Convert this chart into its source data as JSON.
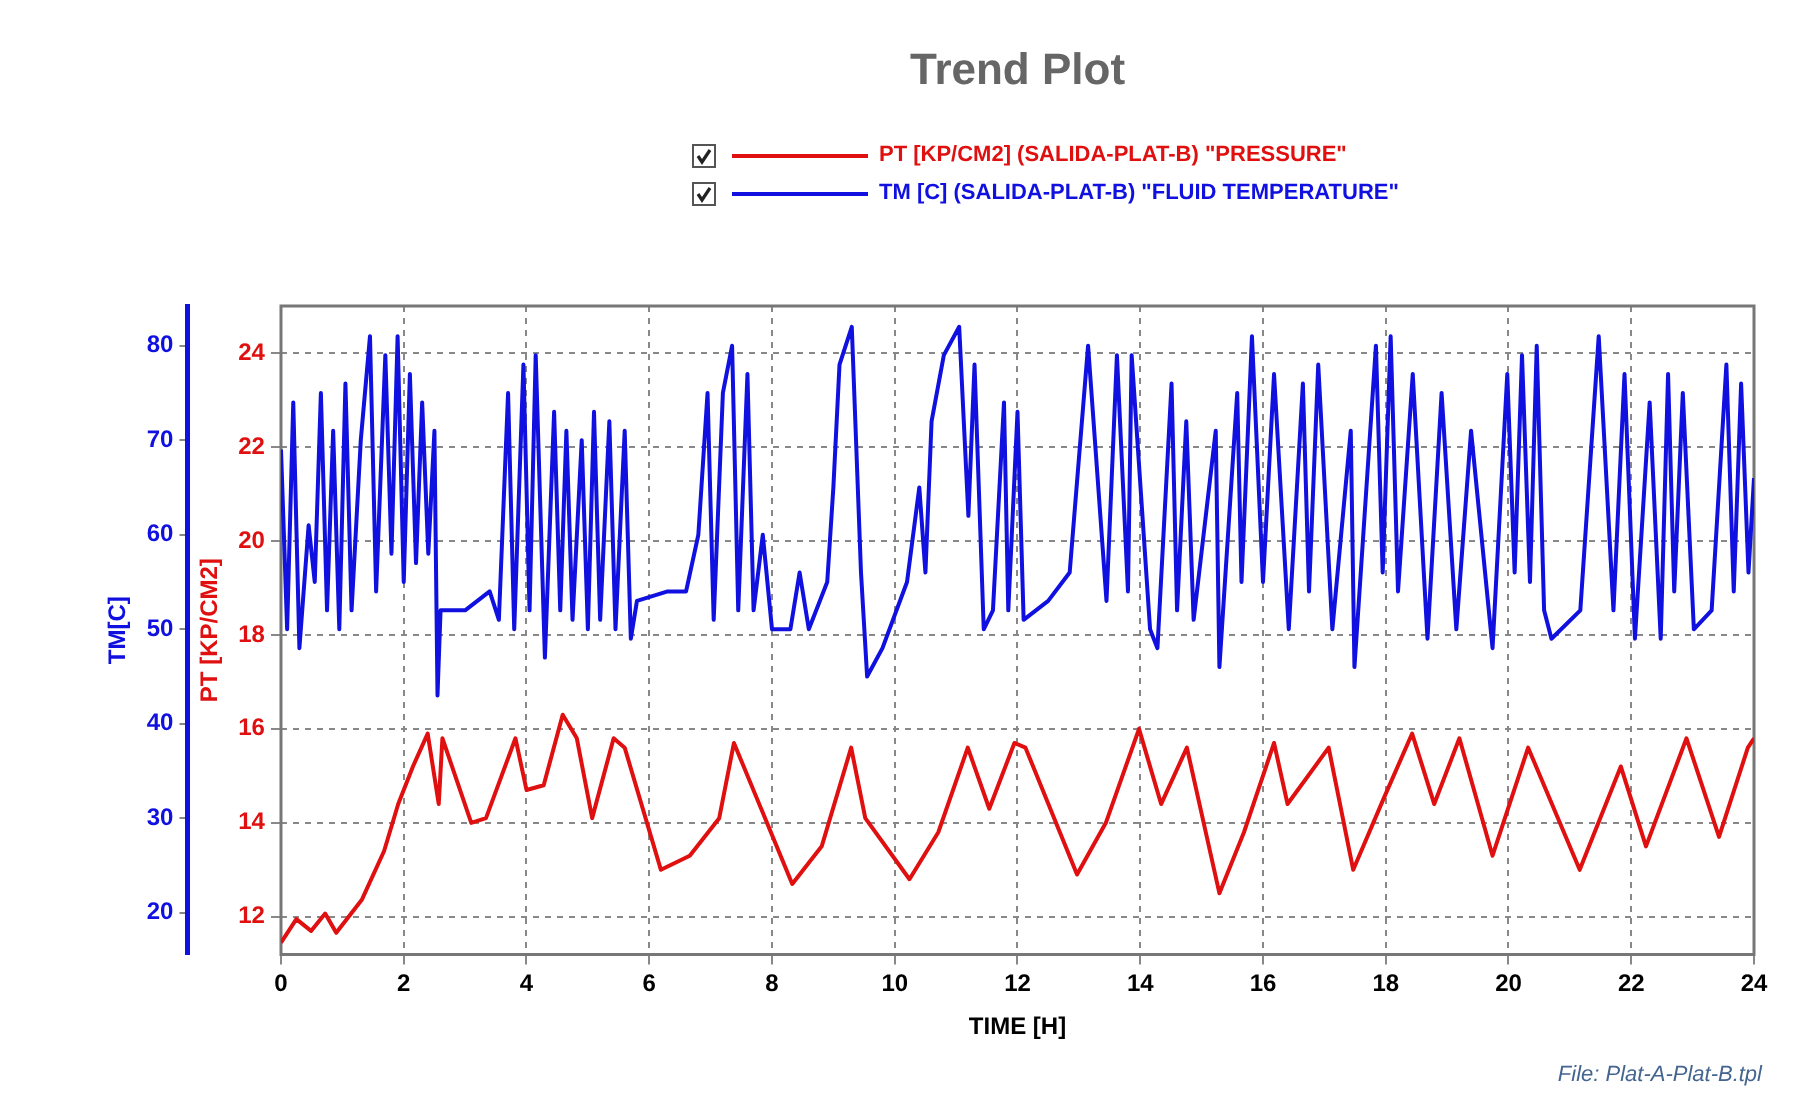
{
  "chart_data": {
    "type": "line",
    "title": "Trend Plot",
    "xlabel": "TIME [H]",
    "ylabel": "PT [KP/CM2]",
    "y2label": "TM[C]",
    "xlim": [
      0,
      24
    ],
    "xticks": [
      0,
      2,
      4,
      6,
      8,
      10,
      12,
      14,
      16,
      18,
      20,
      22,
      24
    ],
    "ylim": [
      11.2,
      25
    ],
    "yticks": [
      12,
      14,
      16,
      18,
      20,
      22,
      24
    ],
    "y2lim": [
      15.6,
      84.2
    ],
    "y2ticks": [
      20,
      30,
      40,
      50,
      60,
      70,
      80
    ],
    "grid": true,
    "legend": "top",
    "annotations": [
      "File: Plat-A-Plat-B.tpl"
    ],
    "series": [
      {
        "name": "PT [KP/CM2] (SALIDA-PLAT-B) \"PRESSURE\"",
        "color": "#e01010",
        "axis": "y",
        "x": [
          0,
          0.25,
          0.49,
          0.72,
          0.9,
          1.32,
          1.68,
          1.91,
          2.15,
          2.39,
          2.57,
          2.63,
          3.1,
          3.34,
          3.82,
          4.0,
          4.28,
          4.59,
          4.82,
          5.07,
          5.42,
          5.6,
          6.19,
          6.66,
          7.14,
          7.38,
          8.33,
          8.81,
          9.29,
          9.52,
          10.24,
          10.71,
          11.19,
          11.54,
          11.95,
          12.13,
          12.97,
          13.44,
          13.98,
          14.34,
          14.76,
          15.29,
          15.69,
          16.18,
          16.4,
          17.07,
          17.47,
          17.96,
          18.43,
          18.79,
          19.2,
          19.74,
          20.32,
          21.16,
          21.83,
          22.24,
          22.9,
          23.43,
          23.9,
          24
        ],
        "values": [
          11.45,
          11.95,
          11.7,
          12.07,
          11.66,
          12.37,
          13.4,
          14.4,
          15.2,
          15.9,
          14.4,
          15.8,
          14.0,
          14.1,
          15.8,
          14.7,
          14.8,
          16.3,
          15.8,
          14.1,
          15.8,
          15.6,
          13.0,
          13.3,
          14.1,
          15.7,
          12.7,
          13.5,
          15.6,
          14.1,
          12.8,
          13.8,
          15.6,
          14.3,
          15.7,
          15.6,
          12.9,
          14.0,
          16.0,
          14.4,
          15.6,
          12.5,
          13.8,
          15.7,
          14.4,
          15.6,
          13.0,
          14.5,
          15.9,
          14.4,
          15.8,
          13.3,
          15.6,
          13.0,
          15.2,
          13.5,
          15.8,
          13.7,
          15.6,
          15.8
        ]
      },
      {
        "name": "TM [C] (SALIDA-PLAT-B) \"FLUID TEMPERATURE\"",
        "color": "#1010e0",
        "axis": "y2",
        "x": [
          0,
          0.1,
          0.2,
          0.3,
          0.45,
          0.55,
          0.65,
          0.75,
          0.85,
          0.95,
          1.05,
          1.15,
          1.3,
          1.45,
          1.55,
          1.7,
          1.8,
          1.9,
          2.0,
          2.1,
          2.2,
          2.3,
          2.4,
          2.5,
          2.55,
          2.6,
          3.0,
          3.4,
          3.55,
          3.7,
          3.8,
          3.95,
          4.05,
          4.15,
          4.3,
          4.45,
          4.55,
          4.65,
          4.75,
          4.9,
          5.0,
          5.1,
          5.2,
          5.35,
          5.45,
          5.6,
          5.7,
          5.8,
          6.3,
          6.6,
          6.8,
          6.95,
          7.05,
          7.2,
          7.35,
          7.45,
          7.6,
          7.7,
          7.85,
          8.0,
          8.3,
          8.45,
          8.6,
          8.9,
          9.0,
          9.1,
          9.3,
          9.45,
          9.55,
          9.8,
          10.2,
          10.4,
          10.5,
          10.6,
          10.8,
          11.05,
          11.2,
          11.3,
          11.45,
          11.6,
          11.78,
          11.85,
          12.0,
          12.1,
          12.5,
          12.85,
          13.15,
          13.45,
          13.62,
          13.8,
          13.86,
          14.16,
          14.28,
          14.51,
          14.6,
          14.75,
          14.87,
          15.23,
          15.29,
          15.58,
          15.65,
          15.82,
          16.0,
          16.18,
          16.42,
          16.65,
          16.75,
          16.9,
          17.13,
          17.43,
          17.49,
          17.84,
          17.95,
          18.08,
          18.2,
          18.44,
          18.68,
          18.91,
          19.15,
          19.39,
          19.74,
          19.98,
          20.1,
          20.22,
          20.35,
          20.46,
          20.58,
          20.7,
          21.17,
          21.47,
          21.71,
          21.89,
          22.06,
          22.3,
          22.48,
          22.6,
          22.7,
          22.84,
          23.02,
          23.31,
          23.55,
          23.67,
          23.79,
          23.91,
          24
        ],
        "values": [
          69,
          50,
          74,
          48,
          61,
          55,
          75,
          52,
          71,
          50,
          76,
          52,
          70,
          81,
          54,
          79,
          58,
          81,
          55,
          77,
          57,
          74,
          58,
          71,
          43,
          52,
          52,
          54,
          51,
          75,
          50,
          78,
          52,
          79,
          47,
          73,
          52,
          71,
          51,
          70,
          50,
          73,
          51,
          72,
          50,
          71,
          49,
          53,
          54,
          54,
          60,
          75,
          51,
          75,
          80,
          52,
          77,
          52,
          60,
          50,
          50,
          56,
          50,
          55,
          65,
          78,
          82,
          56,
          45,
          48,
          55,
          65,
          56,
          72,
          79,
          82,
          62,
          78,
          50,
          52,
          74,
          52,
          73,
          51,
          53,
          56,
          80,
          53,
          79,
          54,
          79,
          50,
          48,
          76,
          52,
          72,
          51,
          71,
          46,
          75,
          55,
          81,
          55,
          77,
          50,
          76,
          54,
          78,
          50,
          71,
          46,
          80,
          56,
          81,
          54,
          77,
          49,
          75,
          50,
          71,
          48,
          77,
          56,
          79,
          55,
          80,
          52,
          49,
          52,
          81,
          52,
          77,
          49,
          74,
          49,
          77,
          54,
          75,
          50,
          52,
          78,
          54,
          76,
          56,
          66
        ]
      }
    ]
  }
}
